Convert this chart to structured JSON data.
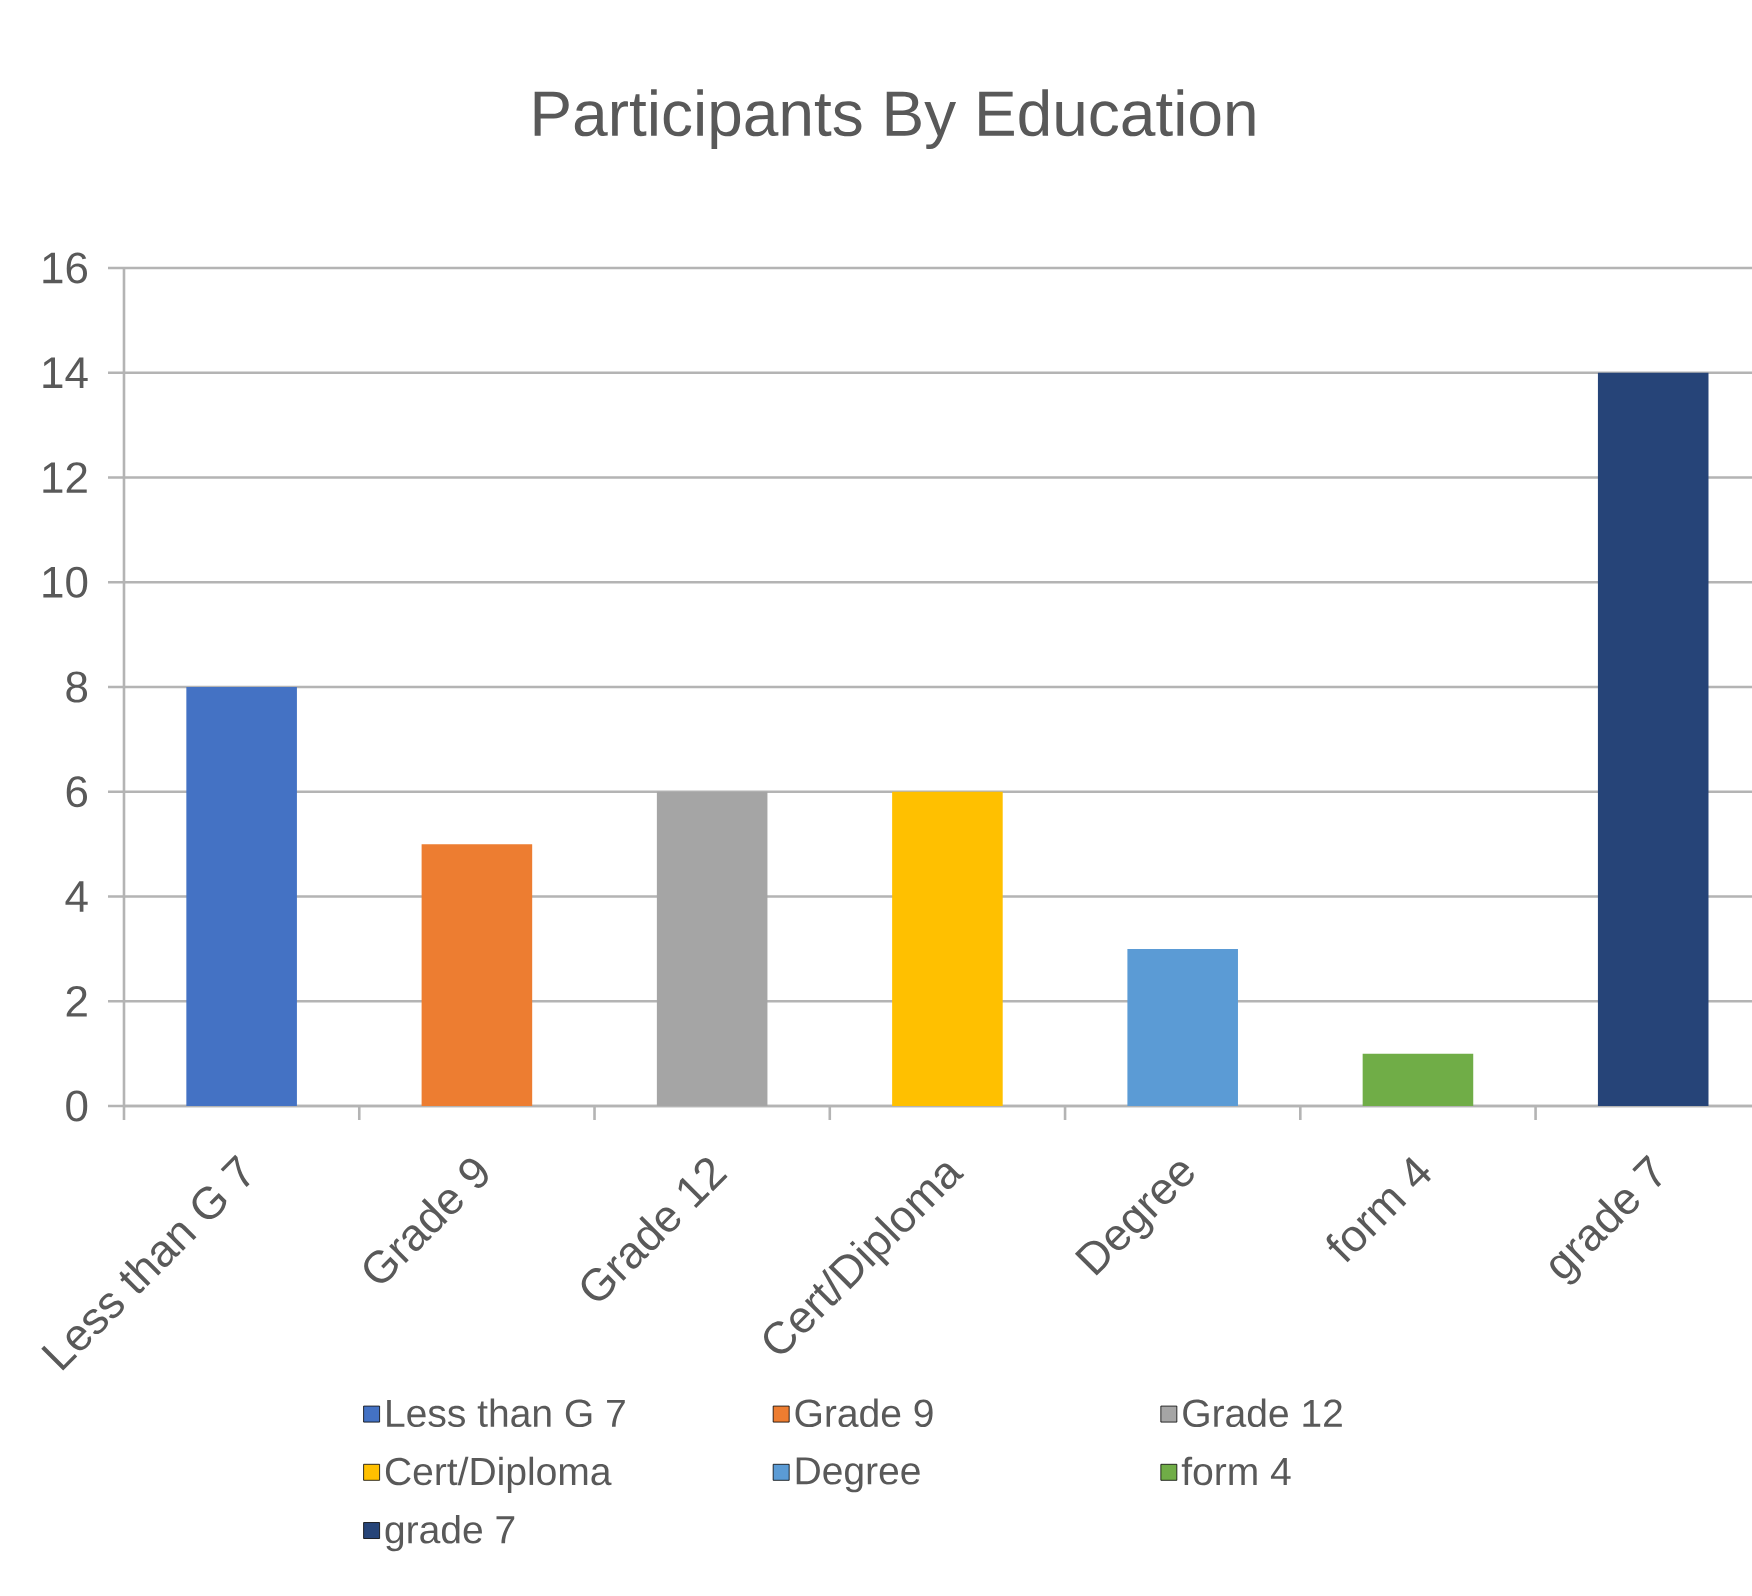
{
  "chart_data": {
    "type": "bar",
    "title": "Participants By Education",
    "categories": [
      "Less than G 7",
      "Grade 9",
      "Grade 12",
      "Cert/Diploma",
      "Degree",
      "form 4",
      "grade 7"
    ],
    "series": [
      {
        "name": "Less than G 7",
        "color": "#4472c4",
        "values": [
          8,
          null,
          null,
          null,
          null,
          null,
          null
        ]
      },
      {
        "name": "Grade 9",
        "color": "#ed7d31",
        "values": [
          null,
          5,
          null,
          null,
          null,
          null,
          null
        ]
      },
      {
        "name": "Grade 12",
        "color": "#a5a5a5",
        "values": [
          null,
          null,
          6,
          null,
          null,
          null,
          null
        ]
      },
      {
        "name": "Cert/Diploma",
        "color": "#ffc000",
        "values": [
          null,
          null,
          null,
          6,
          null,
          null,
          null
        ]
      },
      {
        "name": "Degree",
        "color": "#5b9bd5",
        "values": [
          null,
          null,
          null,
          null,
          3,
          null,
          null
        ]
      },
      {
        "name": "form 4",
        "color": "#70ad47",
        "values": [
          null,
          null,
          null,
          null,
          null,
          1,
          null
        ]
      },
      {
        "name": "grade 7",
        "color": "#264478",
        "values": [
          null,
          null,
          null,
          null,
          null,
          null,
          14
        ]
      }
    ],
    "stacked": true,
    "ylim": [
      0,
      16
    ],
    "yticks": [
      0,
      2,
      4,
      6,
      8,
      10,
      12,
      14,
      16
    ],
    "grid": "y",
    "legend": "bottom"
  }
}
